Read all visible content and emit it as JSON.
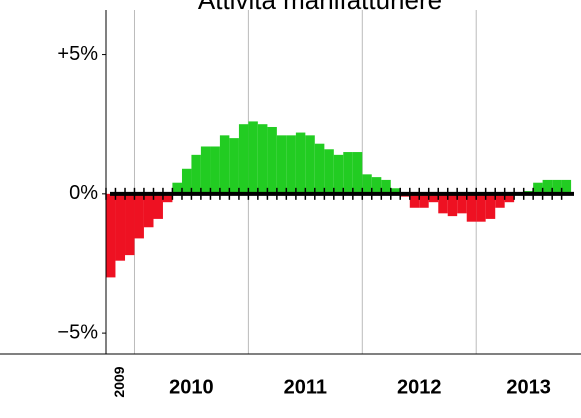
{
  "chart_data": {
    "type": "bar",
    "title": "Attività manifatturiere",
    "x": [
      2009.75,
      2009.833,
      2009.917,
      2010,
      2010.083,
      2010.167,
      2010.25,
      2010.333,
      2010.417,
      2010.5,
      2010.583,
      2010.667,
      2010.75,
      2010.833,
      2010.917,
      2011,
      2011.083,
      2011.167,
      2011.25,
      2011.333,
      2011.417,
      2011.5,
      2011.583,
      2011.667,
      2011.75,
      2011.833,
      2011.917,
      2012,
      2012.083,
      2012.167,
      2012.25,
      2012.333,
      2012.417,
      2012.5,
      2012.583,
      2012.667,
      2012.75,
      2012.833,
      2012.917,
      2013,
      2013.083,
      2013.167,
      2013.25,
      2013.333,
      2013.417,
      2013.5,
      2013.583,
      2013.667,
      2013.75
    ],
    "values": [
      -3.0,
      -2.4,
      -2.2,
      -1.6,
      -1.2,
      -0.9,
      -0.3,
      0.4,
      0.9,
      1.4,
      1.7,
      1.7,
      2.1,
      2.0,
      2.5,
      2.6,
      2.5,
      2.4,
      2.1,
      2.1,
      2.2,
      2.1,
      1.8,
      1.6,
      1.4,
      1.5,
      1.5,
      0.7,
      0.6,
      0.5,
      0.2,
      -0.1,
      -0.5,
      -0.5,
      -0.3,
      -0.7,
      -0.8,
      -0.7,
      -1.0,
      -1.0,
      -0.9,
      -0.5,
      -0.3,
      0.0,
      0.1,
      0.4,
      0.5,
      0.5,
      0.5
    ],
    "positive_color": "#22cc22",
    "negative_color": "#ee1122",
    "xlim": [
      2009.75,
      2013.92
    ],
    "xticks": [
      {
        "value": 2009,
        "label": "2009"
      },
      {
        "value": 2010,
        "label": "2010"
      },
      {
        "value": 2011,
        "label": "2011"
      },
      {
        "value": 2012,
        "label": "2012"
      },
      {
        "value": 2013,
        "label": "2013"
      }
    ],
    "ylim": [
      -5.75,
      6.6
    ],
    "yticks": [
      {
        "value": 5,
        "label": "+5%"
      },
      {
        "value": 0,
        "label": "0%"
      },
      {
        "value": -5,
        "label": "−5%"
      }
    ],
    "grid": true
  }
}
